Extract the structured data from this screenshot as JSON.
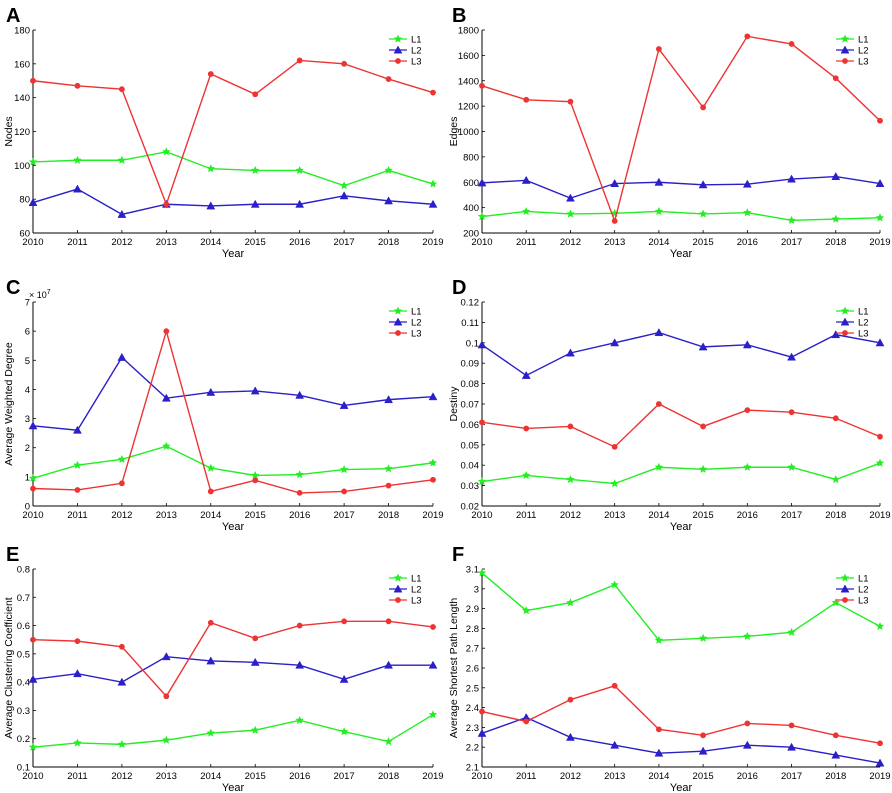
{
  "figure": {
    "panel_letters": [
      "A",
      "B",
      "C",
      "D",
      "E",
      "F"
    ]
  },
  "chart_data": [
    {
      "panel": "A",
      "type": "line",
      "xlabel": "Year",
      "ylabel": "Nodes",
      "x": [
        2010,
        2011,
        2012,
        2013,
        2014,
        2015,
        2016,
        2017,
        2018,
        2019
      ],
      "xticks": [
        "2010",
        "2011",
        "2012",
        "2013",
        "2014",
        "2015",
        "2016",
        "2017",
        "2018",
        "2019"
      ],
      "ylim": [
        60,
        180
      ],
      "yticks": [
        "60",
        "80",
        "100",
        "120",
        "140",
        "160",
        "180"
      ],
      "exponent": "",
      "series": [
        {
          "name": "L1",
          "color": "#22ee22",
          "marker": "star",
          "values": [
            102,
            103,
            103,
            108,
            98,
            97,
            97,
            88,
            97,
            89
          ]
        },
        {
          "name": "L2",
          "color": "#2a1fc8",
          "marker": "triangle",
          "values": [
            78,
            86,
            71,
            77,
            76,
            77,
            77,
            82,
            79,
            77
          ]
        },
        {
          "name": "L3",
          "color": "#ee3333",
          "marker": "circle",
          "values": [
            150,
            147,
            145,
            77,
            154,
            142,
            162,
            160,
            151,
            143
          ]
        }
      ]
    },
    {
      "panel": "B",
      "type": "line",
      "xlabel": "Year",
      "ylabel": "Edges",
      "x": [
        2010,
        2011,
        2012,
        2013,
        2014,
        2015,
        2016,
        2017,
        2018,
        2019
      ],
      "xticks": [
        "2010",
        "2011",
        "2012",
        "2013",
        "2014",
        "2015",
        "2016",
        "2017",
        "2018",
        "2019"
      ],
      "ylim": [
        200,
        1800
      ],
      "yticks": [
        "200",
        "400",
        "600",
        "800",
        "1000",
        "1200",
        "1400",
        "1600",
        "1800"
      ],
      "exponent": "",
      "series": [
        {
          "name": "L1",
          "color": "#22ee22",
          "marker": "star",
          "values": [
            330,
            370,
            350,
            355,
            370,
            350,
            360,
            300,
            310,
            320
          ]
        },
        {
          "name": "L2",
          "color": "#2a1fc8",
          "marker": "triangle",
          "values": [
            595,
            615,
            475,
            590,
            600,
            580,
            585,
            625,
            645,
            590
          ]
        },
        {
          "name": "L3",
          "color": "#ee3333",
          "marker": "circle",
          "values": [
            1360,
            1250,
            1235,
            295,
            1650,
            1190,
            1750,
            1690,
            1420,
            1085
          ]
        }
      ]
    },
    {
      "panel": "C",
      "type": "line",
      "xlabel": "Year",
      "ylabel": "Average Weighted Degree",
      "x": [
        2010,
        2011,
        2012,
        2013,
        2014,
        2015,
        2016,
        2017,
        2018,
        2019
      ],
      "xticks": [
        "2010",
        "2011",
        "2012",
        "2013",
        "2014",
        "2015",
        "2016",
        "2017",
        "2018",
        "2019"
      ],
      "ylim": [
        0,
        7
      ],
      "yticks": [
        "0",
        "1",
        "2",
        "3",
        "4",
        "5",
        "6",
        "7"
      ],
      "exponent": "× 10",
      "exponent_power": "7",
      "series": [
        {
          "name": "L1",
          "color": "#22ee22",
          "marker": "star",
          "values": [
            0.95,
            1.4,
            1.6,
            2.05,
            1.3,
            1.05,
            1.08,
            1.25,
            1.28,
            1.48
          ]
        },
        {
          "name": "L2",
          "color": "#2a1fc8",
          "marker": "triangle",
          "values": [
            2.75,
            2.6,
            5.1,
            3.7,
            3.9,
            3.95,
            3.8,
            3.45,
            3.65,
            3.75
          ]
        },
        {
          "name": "L3",
          "color": "#ee3333",
          "marker": "circle",
          "values": [
            0.6,
            0.55,
            0.78,
            6.0,
            0.5,
            0.88,
            0.45,
            0.5,
            0.7,
            0.9
          ]
        }
      ]
    },
    {
      "panel": "D",
      "type": "line",
      "xlabel": "Year",
      "ylabel": "Destiny",
      "x": [
        2010,
        2011,
        2012,
        2013,
        2014,
        2015,
        2016,
        2017,
        2018,
        2019
      ],
      "xticks": [
        "2010",
        "2011",
        "2012",
        "2013",
        "2014",
        "2015",
        "2016",
        "2017",
        "2018",
        "2019"
      ],
      "ylim": [
        0.02,
        0.12
      ],
      "yticks": [
        "0.02",
        "0.03",
        "0.04",
        "0.05",
        "0.06",
        "0.07",
        "0.08",
        "0.09",
        "0.1",
        "0.11",
        "0.12"
      ],
      "exponent": "",
      "series": [
        {
          "name": "L1",
          "color": "#22ee22",
          "marker": "star",
          "values": [
            0.032,
            0.035,
            0.033,
            0.031,
            0.039,
            0.038,
            0.039,
            0.039,
            0.033,
            0.041
          ]
        },
        {
          "name": "L2",
          "color": "#2a1fc8",
          "marker": "triangle",
          "values": [
            0.099,
            0.084,
            0.095,
            0.1,
            0.105,
            0.098,
            0.099,
            0.093,
            0.104,
            0.1
          ]
        },
        {
          "name": "L3",
          "color": "#ee3333",
          "marker": "circle",
          "values": [
            0.061,
            0.058,
            0.059,
            0.049,
            0.07,
            0.059,
            0.067,
            0.066,
            0.063,
            0.054
          ]
        }
      ]
    },
    {
      "panel": "E",
      "type": "line",
      "xlabel": "Year",
      "ylabel": "Average Clustering Coefficient",
      "x": [
        2010,
        2011,
        2012,
        2013,
        2014,
        2015,
        2016,
        2017,
        2018,
        2019
      ],
      "xticks": [
        "2010",
        "2011",
        "2012",
        "2013",
        "2014",
        "2015",
        "2016",
        "2017",
        "2018",
        "2019"
      ],
      "ylim": [
        0.1,
        0.8
      ],
      "yticks": [
        "0.1",
        "0.2",
        "0.3",
        "0.4",
        "0.5",
        "0.6",
        "0.7",
        "0.8"
      ],
      "exponent": "",
      "series": [
        {
          "name": "L1",
          "color": "#22ee22",
          "marker": "star",
          "values": [
            0.17,
            0.185,
            0.18,
            0.195,
            0.22,
            0.23,
            0.265,
            0.225,
            0.19,
            0.285
          ]
        },
        {
          "name": "L2",
          "color": "#2a1fc8",
          "marker": "triangle",
          "values": [
            0.41,
            0.43,
            0.4,
            0.49,
            0.475,
            0.47,
            0.46,
            0.41,
            0.46,
            0.46
          ]
        },
        {
          "name": "L3",
          "color": "#ee3333",
          "marker": "circle",
          "values": [
            0.55,
            0.545,
            0.525,
            0.35,
            0.61,
            0.555,
            0.6,
            0.615,
            0.615,
            0.595
          ]
        }
      ]
    },
    {
      "panel": "F",
      "type": "line",
      "xlabel": "Year",
      "ylabel": "Average Shortest Path Length",
      "x": [
        2010,
        2011,
        2012,
        2013,
        2014,
        2015,
        2016,
        2017,
        2018,
        2019
      ],
      "xticks": [
        "2010",
        "2011",
        "2012",
        "2013",
        "2014",
        "2015",
        "2016",
        "2017",
        "2018",
        "2019"
      ],
      "ylim": [
        2.1,
        3.1
      ],
      "yticks": [
        "2.1",
        "2.2",
        "2.3",
        "2.4",
        "2.5",
        "2.6",
        "2.7",
        "2.8",
        "2.9",
        "3",
        "3.1"
      ],
      "exponent": "",
      "series": [
        {
          "name": "L1",
          "color": "#22ee22",
          "marker": "star",
          "values": [
            3.08,
            2.89,
            2.93,
            3.02,
            2.74,
            2.75,
            2.76,
            2.78,
            2.93,
            2.81
          ]
        },
        {
          "name": "L2",
          "color": "#2a1fc8",
          "marker": "triangle",
          "values": [
            2.27,
            2.35,
            2.25,
            2.21,
            2.17,
            2.18,
            2.21,
            2.2,
            2.16,
            2.12
          ]
        },
        {
          "name": "L3",
          "color": "#ee3333",
          "marker": "circle",
          "values": [
            2.38,
            2.33,
            2.44,
            2.51,
            2.29,
            2.26,
            2.32,
            2.31,
            2.26,
            2.22
          ]
        }
      ]
    }
  ]
}
